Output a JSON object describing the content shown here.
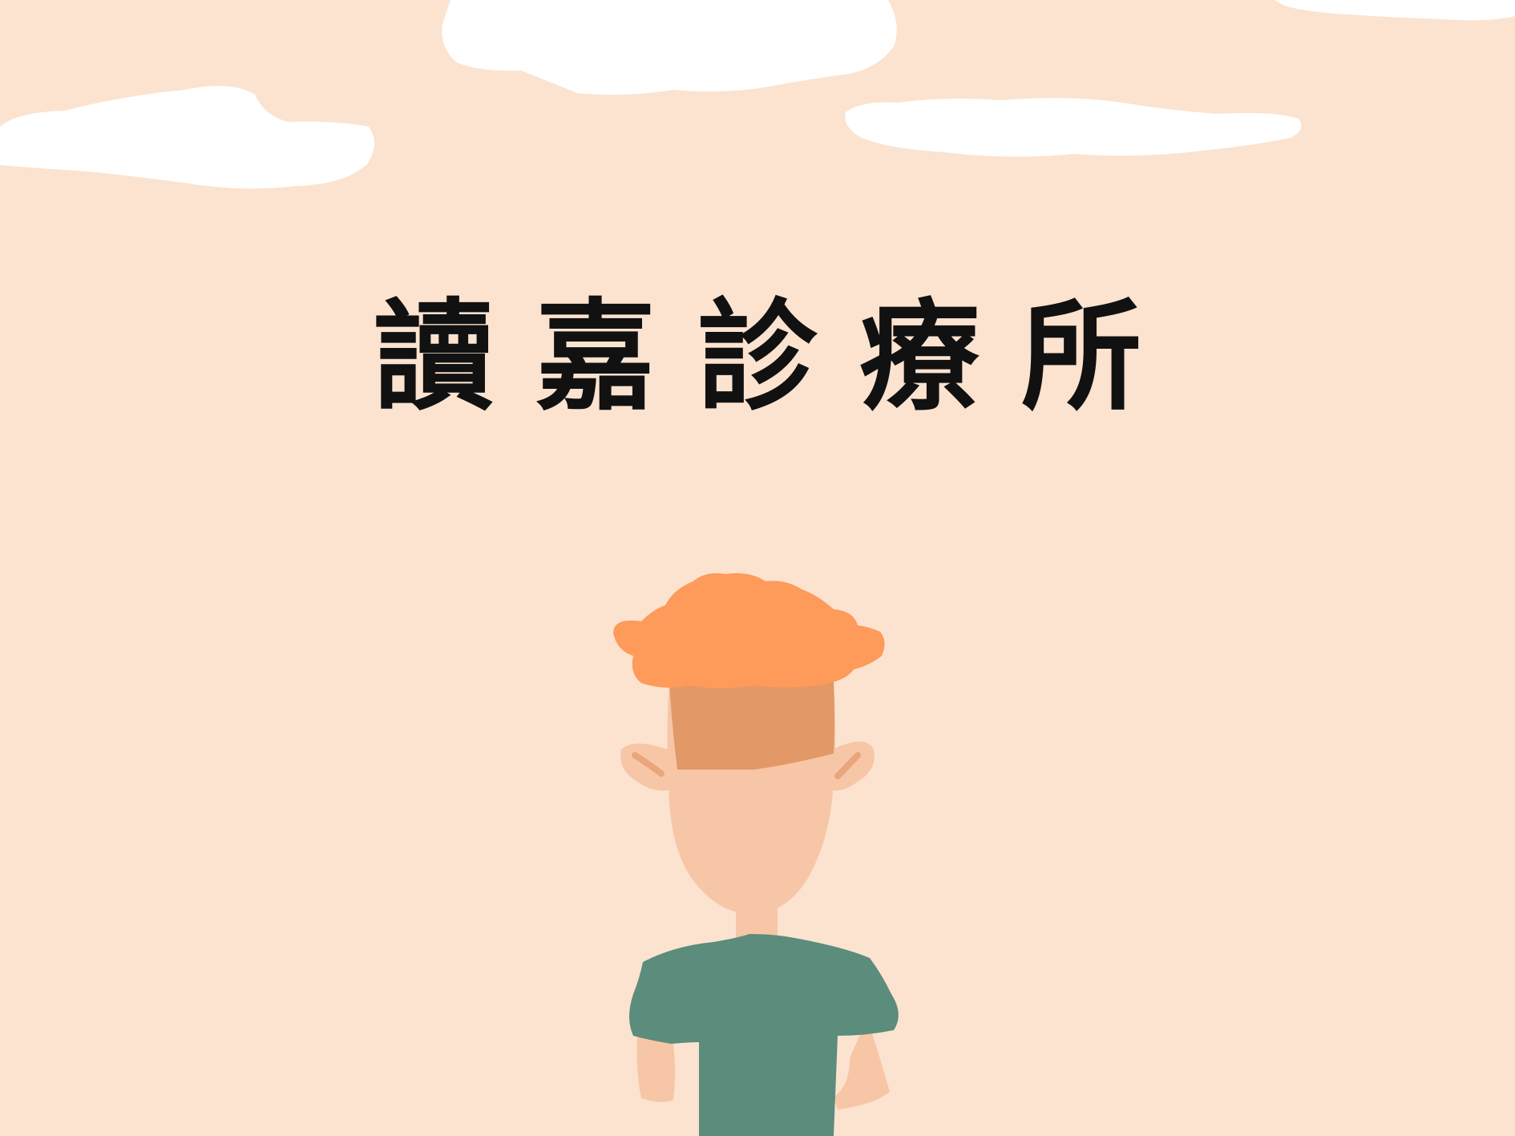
{
  "title": "讀嘉診療所",
  "colors": {
    "background": "#fbe3d0",
    "cloud": "#ffffff",
    "hair": "#fe9a5a",
    "scalp": "#e29867",
    "skin": "#f7c6a6",
    "ear_inner": "#e9a57c",
    "shirt": "#5c8c7b",
    "title_text": "#111111"
  },
  "figure": {
    "description_icon": "person-back-view-icon"
  }
}
